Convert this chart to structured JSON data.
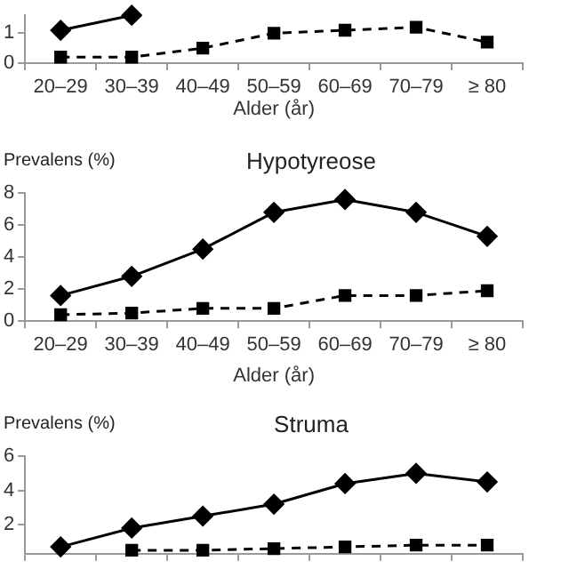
{
  "chart_data": [
    {
      "type": "line",
      "categories": [
        "20–29",
        "30–39",
        "40–49",
        "50–59",
        "60–69",
        "70–79",
        "≥ 80"
      ],
      "xlabel": "Alder (år)",
      "ylim": [
        0,
        1.6
      ],
      "yticks": [
        0,
        1
      ],
      "grid": false,
      "legend": false,
      "series": [
        {
          "color": "#000000",
          "marker": "diamond",
          "line_style": "solid",
          "values": [
            1.1,
            1.6,
            null,
            null,
            null,
            null,
            null
          ]
        },
        {
          "color": "#000000",
          "marker": "square",
          "line_style": "dashed",
          "values": [
            0.2,
            0.2,
            0.5,
            1.0,
            1.1,
            1.2,
            0.7
          ]
        }
      ]
    },
    {
      "type": "line",
      "title": "Hypotyreose",
      "ylabel": "Prevalens (%)",
      "categories": [
        "20–29",
        "30–39",
        "40–49",
        "50–59",
        "60–69",
        "70–79",
        "≥ 80"
      ],
      "xlabel": "Alder (år)",
      "ylim": [
        0,
        8
      ],
      "yticks": [
        0,
        2,
        4,
        6,
        8
      ],
      "grid": false,
      "legend": false,
      "series": [
        {
          "color": "#000000",
          "marker": "diamond",
          "line_style": "solid",
          "values": [
            1.6,
            2.8,
            4.5,
            6.8,
            7.6,
            6.8,
            5.3
          ]
        },
        {
          "color": "#000000",
          "marker": "square",
          "line_style": "dashed",
          "values": [
            0.4,
            0.5,
            0.8,
            0.8,
            1.6,
            1.6,
            1.9
          ]
        }
      ]
    },
    {
      "type": "line",
      "title": "Struma",
      "ylabel": "Prevalens (%)",
      "categories": [
        null,
        null,
        null,
        null,
        null,
        null,
        null
      ],
      "ylim": [
        0.3,
        6
      ],
      "yticks": [
        2,
        4,
        6
      ],
      "grid": false,
      "legend": false,
      "series": [
        {
          "color": "#000000",
          "marker": "diamond",
          "line_style": "solid",
          "values": [
            0.7,
            1.8,
            2.5,
            3.2,
            4.4,
            5.0,
            4.5
          ]
        },
        {
          "color": "#000000",
          "marker": "square",
          "line_style": "dashed",
          "values": [
            null,
            0.5,
            0.5,
            0.6,
            0.7,
            0.8,
            0.8
          ]
        }
      ]
    }
  ]
}
